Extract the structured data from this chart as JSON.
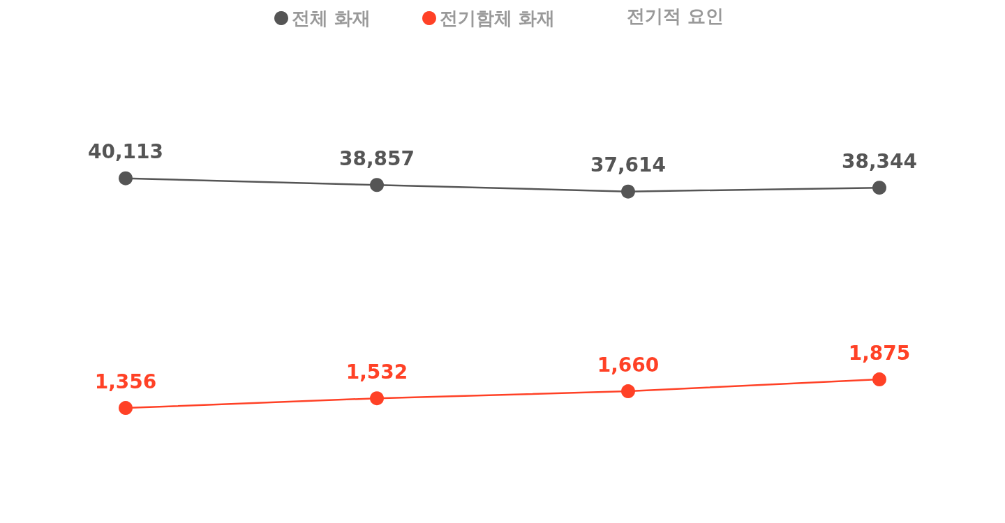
{
  "chart_data": [
    {
      "type": "line",
      "categories": [
        null,
        null,
        null,
        null
      ],
      "series": [
        {
          "name": "전체 화재",
          "color": "#555555",
          "values": [
            40113,
            38857,
            37614,
            38344
          ],
          "value_labels": [
            "40,113",
            "38,857",
            "37,614",
            "38,344"
          ]
        }
      ],
      "legend": "top",
      "marker": "circle",
      "grid": false
    },
    {
      "type": "line",
      "categories": [
        null,
        null,
        null,
        null
      ],
      "series": [
        {
          "name": "전기함체 화재",
          "color": "#ff4126",
          "values": [
            1356,
            1532,
            1660,
            1875
          ],
          "value_labels": [
            "1,356",
            "1,532",
            "1,660",
            "1,875"
          ]
        }
      ],
      "annotations": [
        "전기적 요인"
      ],
      "legend": "top",
      "marker": "circle",
      "grid": false
    }
  ]
}
